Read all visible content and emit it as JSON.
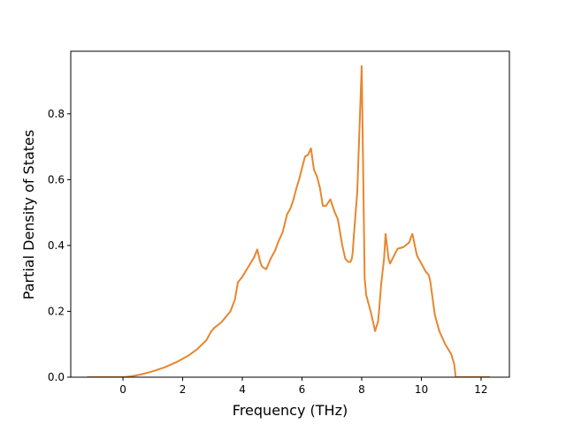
{
  "chart_data": {
    "type": "line",
    "xlabel": "Frequency (THz)",
    "ylabel": "Partial Density of States",
    "xlim": [
      -1.75,
      12.95
    ],
    "ylim": [
      0.0,
      0.99
    ],
    "xticks": [
      "0",
      "2",
      "4",
      "6",
      "8",
      "10",
      "12"
    ],
    "yticks": [
      "0.0",
      "0.2",
      "0.4",
      "0.6",
      "0.8"
    ],
    "line_color": "#e8862e",
    "series": [
      {
        "x": [
          -1.2,
          -0.5,
          0.0,
          0.3,
          0.6,
          1.0,
          1.4,
          1.8,
          2.2,
          2.5,
          2.8,
          2.95,
          3.05,
          3.3,
          3.6,
          3.75,
          3.85,
          4.0,
          4.2,
          4.4,
          4.5,
          4.6,
          4.65,
          4.7,
          4.8,
          4.95,
          5.1,
          5.2,
          5.35,
          5.5,
          5.6,
          5.7,
          5.8,
          5.9,
          6.1,
          6.2,
          6.3,
          6.4,
          6.5,
          6.6,
          6.7,
          6.8,
          6.95,
          7.1,
          7.2,
          7.35,
          7.45,
          7.55,
          7.62,
          7.67,
          7.7,
          7.73,
          7.78,
          7.85,
          8.0,
          8.1,
          8.15,
          8.3,
          8.45,
          8.55,
          8.6,
          8.65,
          8.75,
          8.8,
          8.9,
          8.95,
          9.2,
          9.4,
          9.6,
          9.65,
          9.7,
          9.85,
          10.0,
          10.15,
          10.25,
          10.3,
          10.45,
          10.6,
          10.8,
          11.0,
          11.1,
          11.15,
          11.25,
          11.5,
          12.0,
          12.3
        ],
        "y": [
          0.0,
          0.0,
          0.0,
          0.003,
          0.008,
          0.018,
          0.03,
          0.046,
          0.066,
          0.086,
          0.113,
          0.138,
          0.149,
          0.167,
          0.2,
          0.235,
          0.288,
          0.305,
          0.335,
          0.365,
          0.388,
          0.35,
          0.338,
          0.333,
          0.328,
          0.36,
          0.385,
          0.41,
          0.44,
          0.495,
          0.51,
          0.535,
          0.57,
          0.6,
          0.67,
          0.675,
          0.695,
          0.63,
          0.61,
          0.575,
          0.52,
          0.52,
          0.54,
          0.5,
          0.48,
          0.4,
          0.36,
          0.35,
          0.35,
          0.36,
          0.38,
          0.42,
          0.48,
          0.56,
          0.945,
          0.3,
          0.25,
          0.2,
          0.14,
          0.17,
          0.22,
          0.28,
          0.36,
          0.435,
          0.36,
          0.345,
          0.39,
          0.395,
          0.41,
          0.425,
          0.435,
          0.37,
          0.345,
          0.32,
          0.31,
          0.29,
          0.19,
          0.14,
          0.1,
          0.07,
          0.04,
          0.0,
          0.0,
          0.0,
          0.0,
          0.0
        ]
      }
    ]
  }
}
